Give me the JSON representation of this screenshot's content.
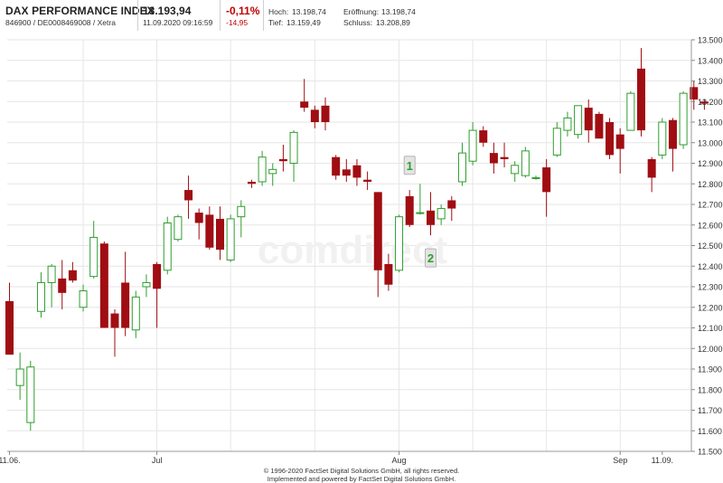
{
  "header": {
    "title": "DAX PERFORMANCE INDEX",
    "subtitle": "846900 / DE0008469008 / Xetra",
    "price": "13.193,94",
    "timestamp": "11.09.2020 09:16:59",
    "change_pct": "-0,11%",
    "change_abs": "-14,95",
    "high_label": "Hoch:",
    "high": "13.198,74",
    "open_label": "Eröffnung:",
    "open": "13.198,74",
    "low_label": "Tief:",
    "low": "13.159,49",
    "close_label": "Schluss:",
    "close": "13.208,89"
  },
  "watermark": "comdirect",
  "footer": {
    "line1": "© 1996-2020 FactSet Digital Solutions GmbH, all rights reserved.",
    "line2": "Implemented and powered by FactSet Digital Solutions GmbH."
  },
  "colors": {
    "up": "#2e9e2e",
    "down": "#a00d12",
    "grid": "#e6e6e6",
    "marker_text": "#2e9e2e"
  },
  "chart_data": {
    "type": "candlestick",
    "title": "",
    "xlabel": "",
    "ylabel": "",
    "ylim": [
      11500,
      13500
    ],
    "grid": true,
    "y_ticks": [
      "13.500",
      "13.400",
      "13.300",
      "13.200",
      "13.100",
      "13.000",
      "12.900",
      "12.800",
      "12.700",
      "12.600",
      "12.500",
      "12.400",
      "12.300",
      "12.200",
      "12.100",
      "12.000",
      "11.900",
      "11.800",
      "11.700",
      "11.600",
      "11.500"
    ],
    "x_ticks": [
      {
        "label": "11.06.",
        "index": 0
      },
      {
        "label": "Jul",
        "index": 14
      },
      {
        "label": "Aug",
        "index": 37
      },
      {
        "label": "Sep",
        "index": 58
      },
      {
        "label": "11.09.",
        "index": 62
      }
    ],
    "x_gridlines": [
      7,
      14,
      21,
      29,
      37,
      44,
      51,
      58
    ],
    "candles": [
      {
        "date": "11.06.",
        "open": 12230,
        "high": 12320,
        "low": 11970,
        "close": 11970
      },
      {
        "date": "12.06.",
        "open": 11820,
        "high": 11980,
        "low": 11750,
        "close": 11900
      },
      {
        "date": "15.06.",
        "open": 11640,
        "high": 11940,
        "low": 11600,
        "close": 11910
      },
      {
        "date": "16.06.",
        "open": 12180,
        "high": 12370,
        "low": 12150,
        "close": 12320
      },
      {
        "date": "17.06.",
        "open": 12320,
        "high": 12410,
        "low": 12200,
        "close": 12400
      },
      {
        "date": "18.06.",
        "open": 12340,
        "high": 12430,
        "low": 12190,
        "close": 12270
      },
      {
        "date": "19.06.",
        "open": 12380,
        "high": 12420,
        "low": 12320,
        "close": 12330
      },
      {
        "date": "22.06.",
        "open": 12200,
        "high": 12310,
        "low": 12180,
        "close": 12280
      },
      {
        "date": "23.06.",
        "open": 12350,
        "high": 12620,
        "low": 12340,
        "close": 12540
      },
      {
        "date": "24.06.",
        "open": 12510,
        "high": 12520,
        "low": 12100,
        "close": 12100
      },
      {
        "date": "25.06.",
        "open": 12170,
        "high": 12190,
        "low": 11960,
        "close": 12100
      },
      {
        "date": "26.06.",
        "open": 12320,
        "high": 12470,
        "low": 12060,
        "close": 12100
      },
      {
        "date": "29.06.",
        "open": 12090,
        "high": 12280,
        "low": 12050,
        "close": 12250
      },
      {
        "date": "30.06.",
        "open": 12300,
        "high": 12360,
        "low": 12250,
        "close": 12320
      },
      {
        "date": "01.07.",
        "open": 12410,
        "high": 12420,
        "low": 12100,
        "close": 12290
      },
      {
        "date": "02.07.",
        "open": 12380,
        "high": 12640,
        "low": 12360,
        "close": 12610
      },
      {
        "date": "03.07.",
        "open": 12530,
        "high": 12650,
        "low": 12520,
        "close": 12640
      },
      {
        "date": "06.07.",
        "open": 12770,
        "high": 12840,
        "low": 12630,
        "close": 12720
      },
      {
        "date": "07.07.",
        "open": 12660,
        "high": 12680,
        "low": 12530,
        "close": 12610
      },
      {
        "date": "08.07.",
        "open": 12650,
        "high": 12690,
        "low": 12480,
        "close": 12490
      },
      {
        "date": "09.07.",
        "open": 12630,
        "high": 12690,
        "low": 12430,
        "close": 12480
      },
      {
        "date": "10.07.",
        "open": 12430,
        "high": 12650,
        "low": 12420,
        "close": 12630
      },
      {
        "date": "13.07.",
        "open": 12640,
        "high": 12720,
        "low": 12540,
        "close": 12690
      },
      {
        "date": "14.07.",
        "open": 12810,
        "high": 12820,
        "low": 12780,
        "close": 12800
      },
      {
        "date": "15.07.",
        "open": 12810,
        "high": 12960,
        "low": 12790,
        "close": 12930
      },
      {
        "date": "16.07.",
        "open": 12850,
        "high": 12900,
        "low": 12790,
        "close": 12870
      },
      {
        "date": "17.07.",
        "open": 12920,
        "high": 12990,
        "low": 12860,
        "close": 12910
      },
      {
        "date": "20.07.",
        "open": 12900,
        "high": 13060,
        "low": 12810,
        "close": 13050
      },
      {
        "date": "21.07.",
        "open": 13200,
        "high": 13310,
        "low": 13150,
        "close": 13170
      },
      {
        "date": "22.07.",
        "open": 13160,
        "high": 13180,
        "low": 13070,
        "close": 13100
      },
      {
        "date": "23.07.",
        "open": 13180,
        "high": 13220,
        "low": 13060,
        "close": 13100
      },
      {
        "date": "24.07.",
        "open": 12930,
        "high": 12940,
        "low": 12820,
        "close": 12840
      },
      {
        "date": "27.07.",
        "open": 12870,
        "high": 12920,
        "low": 12810,
        "close": 12840
      },
      {
        "date": "28.07.",
        "open": 12890,
        "high": 12920,
        "low": 12790,
        "close": 12830
      },
      {
        "date": "29.07.",
        "open": 12820,
        "high": 12860,
        "low": 12770,
        "close": 12810
      },
      {
        "date": "30.07.",
        "open": 12760,
        "high": 12760,
        "low": 12250,
        "close": 12380
      },
      {
        "date": "31.07.",
        "open": 12410,
        "high": 12460,
        "low": 12280,
        "close": 12310
      },
      {
        "date": "03.08.",
        "open": 12380,
        "high": 12650,
        "low": 12370,
        "close": 12640
      },
      {
        "date": "04.08.",
        "open": 12740,
        "high": 12770,
        "low": 12590,
        "close": 12600
      },
      {
        "date": "05.08.",
        "open": 12660,
        "high": 12800,
        "low": 12650,
        "close": 12660
      },
      {
        "date": "06.08.",
        "open": 12670,
        "high": 12760,
        "low": 12550,
        "close": 12600
      },
      {
        "date": "07.08.",
        "open": 12630,
        "high": 12700,
        "low": 12600,
        "close": 12680
      },
      {
        "date": "10.08.",
        "open": 12720,
        "high": 12740,
        "low": 12620,
        "close": 12680
      },
      {
        "date": "11.08.",
        "open": 12810,
        "high": 13000,
        "low": 12790,
        "close": 12950
      },
      {
        "date": "12.08.",
        "open": 12910,
        "high": 13100,
        "low": 12890,
        "close": 13060
      },
      {
        "date": "13.08.",
        "open": 13060,
        "high": 13080,
        "low": 12980,
        "close": 13000
      },
      {
        "date": "14.08.",
        "open": 12950,
        "high": 13000,
        "low": 12850,
        "close": 12900
      },
      {
        "date": "17.08.",
        "open": 12930,
        "high": 13000,
        "low": 12880,
        "close": 12920
      },
      {
        "date": "18.08.",
        "open": 12850,
        "high": 12910,
        "low": 12810,
        "close": 12890
      },
      {
        "date": "19.08.",
        "open": 12840,
        "high": 12980,
        "low": 12830,
        "close": 12960
      },
      {
        "date": "20.08.",
        "open": 12830,
        "high": 12840,
        "low": 12820,
        "close": 12830
      },
      {
        "date": "21.08.",
        "open": 12880,
        "high": 12920,
        "low": 12640,
        "close": 12760
      },
      {
        "date": "24.08.",
        "open": 12940,
        "high": 13100,
        "low": 12930,
        "close": 13070
      },
      {
        "date": "25.08.",
        "open": 13060,
        "high": 13150,
        "low": 13030,
        "close": 13120
      },
      {
        "date": "26.08.",
        "open": 13040,
        "high": 13170,
        "low": 13020,
        "close": 13180
      },
      {
        "date": "27.08.",
        "open": 13170,
        "high": 13210,
        "low": 13000,
        "close": 13060
      },
      {
        "date": "28.08.",
        "open": 13140,
        "high": 13150,
        "low": 13040,
        "close": 13020
      },
      {
        "date": "31.08.",
        "open": 13100,
        "high": 13120,
        "low": 12920,
        "close": 12940
      },
      {
        "date": "01.09.",
        "open": 13040,
        "high": 13070,
        "low": 12850,
        "close": 12970
      },
      {
        "date": "02.09.",
        "open": 13060,
        "high": 13250,
        "low": 13060,
        "close": 13240
      },
      {
        "date": "03.09.",
        "open": 13360,
        "high": 13460,
        "low": 13030,
        "close": 13060
      },
      {
        "date": "04.09.",
        "open": 12920,
        "high": 12930,
        "low": 12760,
        "close": 12830
      },
      {
        "date": "07.09.",
        "open": 12940,
        "high": 13120,
        "low": 12920,
        "close": 13100
      },
      {
        "date": "08.09.",
        "open": 13110,
        "high": 13120,
        "low": 12860,
        "close": 12970
      },
      {
        "date": "09.09.",
        "open": 12990,
        "high": 13250,
        "low": 12970,
        "close": 13240
      },
      {
        "date": "10.09.",
        "open": 13270,
        "high": 13300,
        "low": 13160,
        "close": 13210
      },
      {
        "date": "11.09.",
        "open": 13200,
        "high": 13210,
        "low": 13160,
        "close": 13190
      }
    ],
    "annotations": [
      {
        "label": "1",
        "candle_index": 38,
        "value": 12890
      },
      {
        "label": "2",
        "candle_index": 40,
        "value": 12440
      }
    ]
  }
}
